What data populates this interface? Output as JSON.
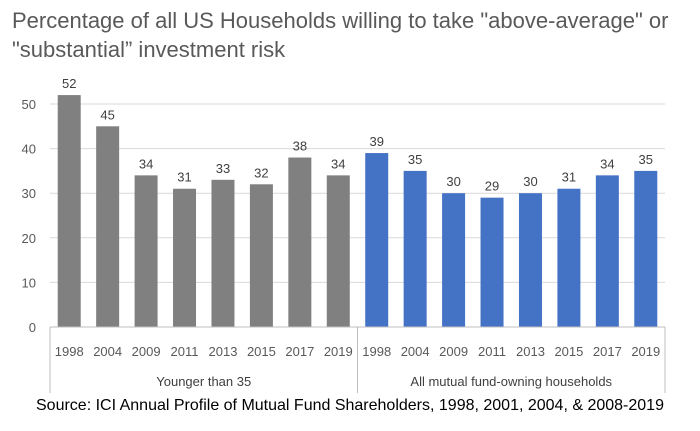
{
  "chart_data": {
    "type": "bar",
    "title": "Percentage of all US Households willing to take \"above-average\" or \"substantial” investment risk",
    "ylim": [
      0,
      50
    ],
    "yticks": [
      0,
      10,
      20,
      30,
      40,
      50
    ],
    "grid": true,
    "data_labels": true,
    "groups": [
      {
        "name": "Younger than 35",
        "color": "#808080",
        "categories": [
          "1998",
          "2004",
          "2009",
          "2011",
          "2013",
          "2015",
          "2017",
          "2019"
        ],
        "values": [
          52,
          45,
          34,
          31,
          33,
          32,
          38,
          34
        ]
      },
      {
        "name": "All mutual fund-owning households",
        "color": "#4472C4",
        "categories": [
          "1998",
          "2004",
          "2009",
          "2011",
          "2013",
          "2015",
          "2017",
          "2019"
        ],
        "values": [
          39,
          35,
          30,
          29,
          30,
          31,
          34,
          35
        ]
      }
    ]
  },
  "source": "Source: ICI Annual Profile of Mutual Fund Shareholders, 1998, 2001, 2004, & 2008-2019"
}
